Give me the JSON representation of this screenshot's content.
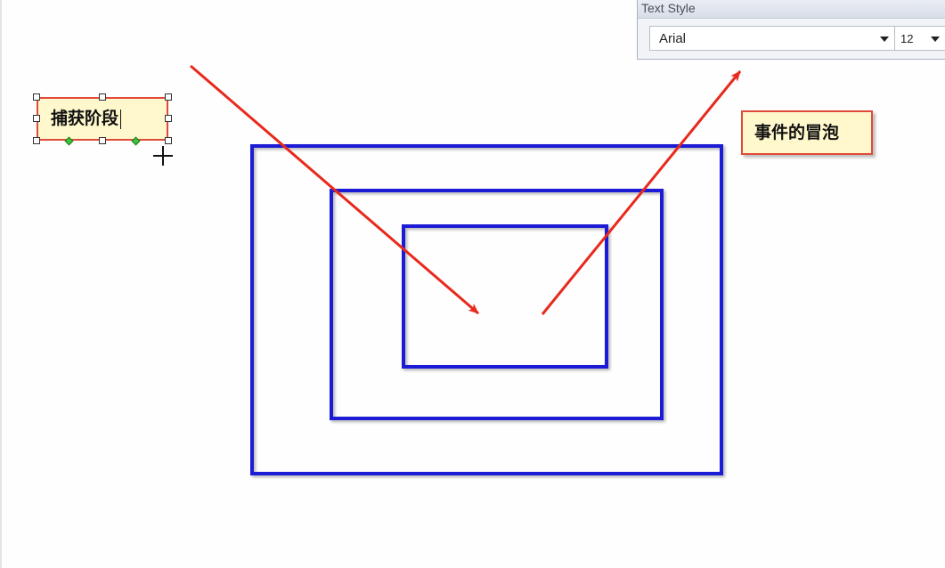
{
  "text_style_panel": {
    "title": "Text Style",
    "font_family_value": "Arial",
    "font_size_value": "12"
  },
  "labels": {
    "capture_phase": "捕获阶段",
    "event_bubbling": "事件的冒泡"
  },
  "colors": {
    "rect_stroke": "#1a1fd6",
    "arrow": "#e8291c",
    "label_fill": "#fff8cc",
    "label_border": "#e04a3a"
  },
  "icons": {
    "dropdown": "chevron-down-icon",
    "cursor": "crosshair-cursor-icon"
  }
}
